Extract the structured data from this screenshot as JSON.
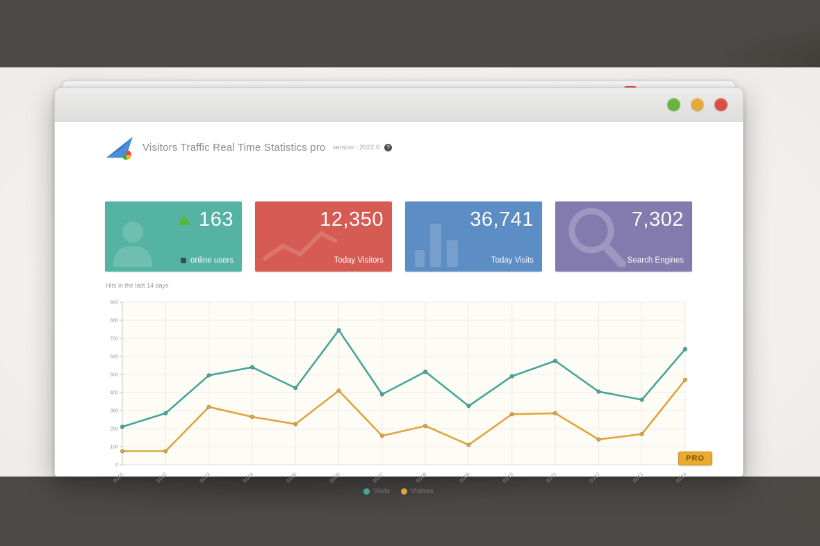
{
  "backdrop": {
    "band_color": "#4b4a47"
  },
  "window": {
    "back_close_color": "#d85352",
    "traffic_lights": [
      {
        "name": "green-light",
        "color": "#69b43d"
      },
      {
        "name": "yellow-light",
        "color": "#e2a93e"
      },
      {
        "name": "red-light",
        "color": "#d94f44"
      }
    ],
    "header": {
      "title": "Visitors Traffic Real Time Statistics pro",
      "version": "version : 2022.0",
      "help_glyph": "?"
    }
  },
  "stat_cards": [
    {
      "value": "163",
      "label": "online users",
      "color": "#54b3a2",
      "icon": "user-icon",
      "trend": "up",
      "trend_color": "#55b83a"
    },
    {
      "value": "12,350",
      "label": "Today Visitors",
      "color": "#d65b53",
      "icon": "line-chart-icon"
    },
    {
      "value": "36,741",
      "label": "Today Visits",
      "color": "#5d8dc5",
      "icon": "bar-chart-icon"
    },
    {
      "value": "7,302",
      "label": "Search Engines",
      "color": "#837aae",
      "icon": "magnifier-icon"
    }
  ],
  "chart_data": {
    "type": "line",
    "title": "Hits in the last 14 days",
    "x": [
      "01/01",
      "01/02",
      "01/03",
      "01/04",
      "01/05",
      "01/06",
      "01/07",
      "01/08",
      "01/09",
      "01/10",
      "01/11",
      "01/12",
      "01/13",
      "01/14"
    ],
    "series": [
      {
        "name": "Visits",
        "color": "#47a59c",
        "values": [
          210,
          285,
          495,
          540,
          425,
          745,
          390,
          515,
          325,
          490,
          575,
          405,
          360,
          640
        ]
      },
      {
        "name": "Visitors",
        "color": "#dfa43e",
        "values": [
          75,
          75,
          320,
          265,
          225,
          410,
          160,
          215,
          110,
          280,
          285,
          140,
          170,
          470
        ]
      }
    ],
    "ylim": [
      0,
      900
    ],
    "ytick_step": 100,
    "grid": true,
    "legend_position": "bottom",
    "plot_bg": "#fdfcf5"
  },
  "footer": {
    "pro_label": "PRO",
    "pro_color": "#e9aa2e"
  }
}
